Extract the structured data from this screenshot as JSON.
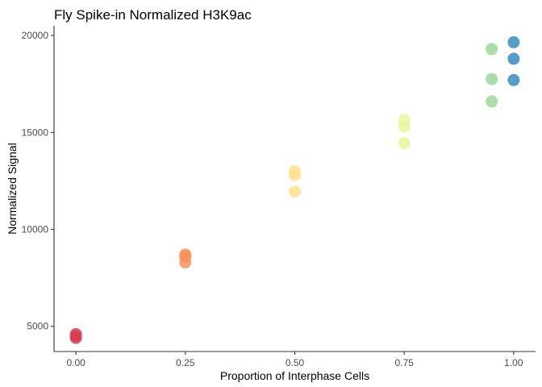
{
  "chart_data": {
    "type": "scatter",
    "title": "Fly Spike-in Normalized H3K9ac",
    "xlabel": "Proportion of Interphase Cells",
    "ylabel": "Normalized Signal",
    "xlim": [
      -0.05,
      1.05
    ],
    "ylim": [
      3700,
      20500
    ],
    "xticks": [
      0,
      0.25,
      0.5,
      0.75,
      1
    ],
    "xtick_labels": [
      "0.00",
      "0.25",
      "0.50",
      "0.75",
      "1.00"
    ],
    "yticks": [
      5000,
      10000,
      15000,
      20000
    ],
    "ytick_labels": [
      "5000",
      "10000",
      "15000",
      "20000"
    ],
    "grid": false,
    "legend": "none",
    "points": [
      {
        "x": 0.0,
        "y": 4400,
        "color": "#d53e4f"
      },
      {
        "x": 0.0,
        "y": 4500,
        "color": "#d53e4f"
      },
      {
        "x": 0.0,
        "y": 4600,
        "color": "#d53e4f"
      },
      {
        "x": 0.25,
        "y": 8300,
        "color": "#fc8d59"
      },
      {
        "x": 0.25,
        "y": 8600,
        "color": "#fc8d59"
      },
      {
        "x": 0.25,
        "y": 8700,
        "color": "#fc8d59"
      },
      {
        "x": 0.5,
        "y": 11950,
        "color": "#fee08b"
      },
      {
        "x": 0.5,
        "y": 12800,
        "color": "#fee08b"
      },
      {
        "x": 0.5,
        "y": 13000,
        "color": "#fee08b"
      },
      {
        "x": 0.75,
        "y": 14450,
        "color": "#e6f598"
      },
      {
        "x": 0.75,
        "y": 15300,
        "color": "#e6f598"
      },
      {
        "x": 0.75,
        "y": 15650,
        "color": "#e6f598"
      },
      {
        "x": 0.95,
        "y": 16600,
        "color": "#99d594"
      },
      {
        "x": 0.95,
        "y": 17750,
        "color": "#99d594"
      },
      {
        "x": 0.95,
        "y": 19300,
        "color": "#99d594"
      },
      {
        "x": 1.0,
        "y": 17700,
        "color": "#3288bd"
      },
      {
        "x": 1.0,
        "y": 18800,
        "color": "#3288bd"
      },
      {
        "x": 1.0,
        "y": 19650,
        "color": "#3288bd"
      }
    ]
  }
}
